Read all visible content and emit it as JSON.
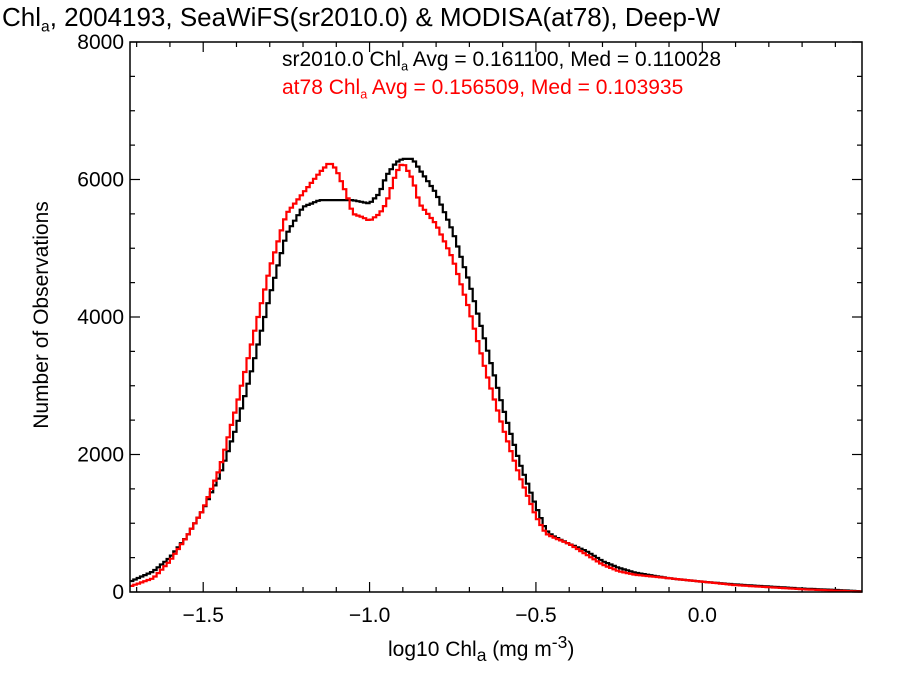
{
  "title": {
    "pre": "Chl",
    "sub": "a",
    "post": ", 2004193, SeaWiFS(sr2010.0) & MODISA(at78), Deep-W"
  },
  "legend": {
    "black": {
      "pre": "sr2010.0 Chl",
      "sub": "a",
      "post": " Avg = 0.161100, Med = 0.110028",
      "color": "#000000"
    },
    "red": {
      "pre": "at78 Chl",
      "sub": "a",
      "post": " Avg = 0.156509, Med = 0.103935",
      "color": "#ff0000"
    }
  },
  "xlabel": {
    "pre": "log10 Chl",
    "sub": "a",
    "mid": " (mg m",
    "sup": "-3",
    "post": ")"
  },
  "ylabel": "Number of Observations",
  "chart_data": {
    "type": "line",
    "xlim": [
      -1.72,
      0.48
    ],
    "ylim": [
      0,
      8000
    ],
    "xticks": [
      -1.5,
      -1.0,
      -0.5,
      0.0
    ],
    "xtick_labels": [
      "−1.5",
      "−1.0",
      "−0.5",
      "0.0"
    ],
    "yticks": [
      0,
      2000,
      4000,
      6000,
      8000
    ],
    "ytick_labels": [
      "0",
      "2000",
      "4000",
      "6000",
      "8000"
    ],
    "series": [
      {
        "color": "#000000",
        "x": [
          -1.72,
          -1.65,
          -1.6,
          -1.55,
          -1.5,
          -1.45,
          -1.4,
          -1.35,
          -1.3,
          -1.25,
          -1.2,
          -1.15,
          -1.1,
          -1.05,
          -1.0,
          -0.97,
          -0.95,
          -0.92,
          -0.9,
          -0.87,
          -0.85,
          -0.8,
          -0.75,
          -0.7,
          -0.65,
          -0.6,
          -0.55,
          -0.5,
          -0.47,
          -0.45,
          -0.4,
          -0.35,
          -0.3,
          -0.25,
          -0.2,
          -0.1,
          0.0,
          0.1,
          0.2,
          0.3,
          0.4,
          0.48
        ],
        "y": [
          150,
          300,
          500,
          800,
          1200,
          1700,
          2400,
          3300,
          4300,
          5200,
          5600,
          5700,
          5700,
          5700,
          5650,
          5800,
          6050,
          6250,
          6300,
          6300,
          6150,
          5800,
          5250,
          4500,
          3600,
          2700,
          1900,
          1250,
          900,
          820,
          700,
          600,
          450,
          350,
          280,
          200,
          150,
          110,
          80,
          50,
          30,
          10
        ]
      },
      {
        "color": "#ff0000",
        "x": [
          -1.72,
          -1.65,
          -1.6,
          -1.55,
          -1.5,
          -1.45,
          -1.4,
          -1.35,
          -1.3,
          -1.25,
          -1.2,
          -1.15,
          -1.12,
          -1.1,
          -1.07,
          -1.05,
          -1.02,
          -1.0,
          -0.97,
          -0.95,
          -0.92,
          -0.9,
          -0.87,
          -0.85,
          -0.8,
          -0.75,
          -0.7,
          -0.65,
          -0.6,
          -0.55,
          -0.5,
          -0.47,
          -0.45,
          -0.4,
          -0.35,
          -0.3,
          -0.25,
          -0.2,
          -0.1,
          0.0,
          0.1,
          0.2,
          0.3,
          0.4,
          0.48
        ],
        "y": [
          80,
          200,
          450,
          800,
          1200,
          1800,
          2700,
          3700,
          4700,
          5500,
          5800,
          6100,
          6250,
          6150,
          5800,
          5500,
          5450,
          5400,
          5500,
          5650,
          6100,
          6250,
          6000,
          5650,
          5350,
          4850,
          4100,
          3200,
          2400,
          1700,
          1100,
          850,
          800,
          700,
          550,
          400,
          300,
          250,
          200,
          150,
          100,
          70,
          40,
          20,
          5
        ]
      }
    ]
  }
}
